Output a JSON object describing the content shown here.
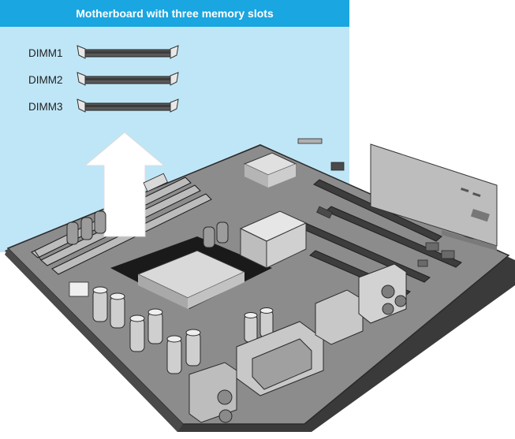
{
  "figure": {
    "title": "Motherboard with three memory slots",
    "colors": {
      "title_bar": "#1aa6e0",
      "panel": "#bfe6f7",
      "board": "#8c8c8c",
      "board_edge": "#3a3a3a",
      "arrow": "#ffffff"
    }
  },
  "slots": [
    {
      "label": "DIMM1"
    },
    {
      "label": "DIMM2"
    },
    {
      "label": "DIMM3"
    }
  ]
}
